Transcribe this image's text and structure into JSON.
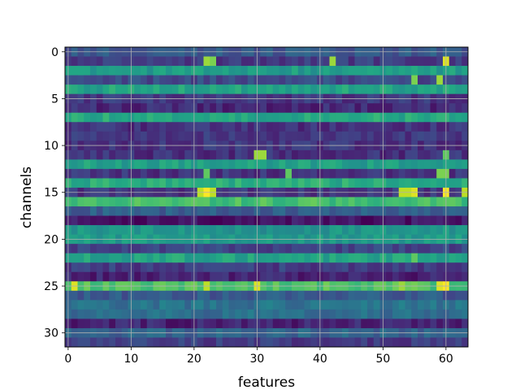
{
  "chart_data": {
    "type": "heatmap",
    "title": "",
    "xlabel": "features",
    "ylabel": "channels",
    "n_cols": 64,
    "n_rows": 32,
    "xlim": [
      -0.5,
      63.5
    ],
    "ylim": [
      31.5,
      -0.5
    ],
    "xticks": [
      0,
      10,
      20,
      30,
      40,
      50,
      60
    ],
    "yticks": [
      0,
      5,
      10,
      15,
      20,
      25,
      30
    ],
    "grid": true,
    "colormap": "viridis",
    "value_range": [
      0,
      1
    ],
    "row_base": [
      0.28,
      0.18,
      0.55,
      0.22,
      0.58,
      0.16,
      0.12,
      0.6,
      0.14,
      0.16,
      0.15,
      0.14,
      0.56,
      0.15,
      0.62,
      0.16,
      0.7,
      0.3,
      0.05,
      0.52,
      0.54,
      0.2,
      0.58,
      0.18,
      0.1,
      0.72,
      0.28,
      0.38,
      0.36,
      0.1,
      0.32,
      0.18
    ],
    "row_base_offset_note": "",
    "hotspots": [
      {
        "row": 1,
        "col": 22,
        "value": 0.85
      },
      {
        "row": 1,
        "col": 23,
        "value": 0.8
      },
      {
        "row": 1,
        "col": 42,
        "value": 0.85
      },
      {
        "row": 1,
        "col": 60,
        "value": 0.95
      },
      {
        "row": 3,
        "col": 55,
        "value": 0.8
      },
      {
        "row": 3,
        "col": 59,
        "value": 0.85
      },
      {
        "row": 11,
        "col": 30,
        "value": 0.85
      },
      {
        "row": 11,
        "col": 31,
        "value": 0.85
      },
      {
        "row": 11,
        "col": 60,
        "value": 0.75
      },
      {
        "row": 13,
        "col": 22,
        "value": 0.75
      },
      {
        "row": 13,
        "col": 35,
        "value": 0.75
      },
      {
        "row": 13,
        "col": 59,
        "value": 0.8
      },
      {
        "row": 13,
        "col": 60,
        "value": 0.8
      },
      {
        "row": 15,
        "col": 21,
        "value": 0.9
      },
      {
        "row": 15,
        "col": 22,
        "value": 1.0
      },
      {
        "row": 15,
        "col": 23,
        "value": 0.9
      },
      {
        "row": 15,
        "col": 53,
        "value": 0.9
      },
      {
        "row": 15,
        "col": 54,
        "value": 0.9
      },
      {
        "row": 15,
        "col": 55,
        "value": 0.95
      },
      {
        "row": 15,
        "col": 60,
        "value": 1.0
      },
      {
        "row": 15,
        "col": 63,
        "value": 0.9
      },
      {
        "row": 25,
        "col": 1,
        "value": 0.95
      },
      {
        "row": 25,
        "col": 22,
        "value": 0.9
      },
      {
        "row": 25,
        "col": 30,
        "value": 0.95
      },
      {
        "row": 25,
        "col": 53,
        "value": 0.85
      },
      {
        "row": 25,
        "col": 59,
        "value": 0.95
      },
      {
        "row": 25,
        "col": 60,
        "value": 1.0
      },
      {
        "row": 22,
        "col": 55,
        "value": 0.75
      },
      {
        "row": 20,
        "col": 22,
        "value": 0.6
      }
    ]
  }
}
